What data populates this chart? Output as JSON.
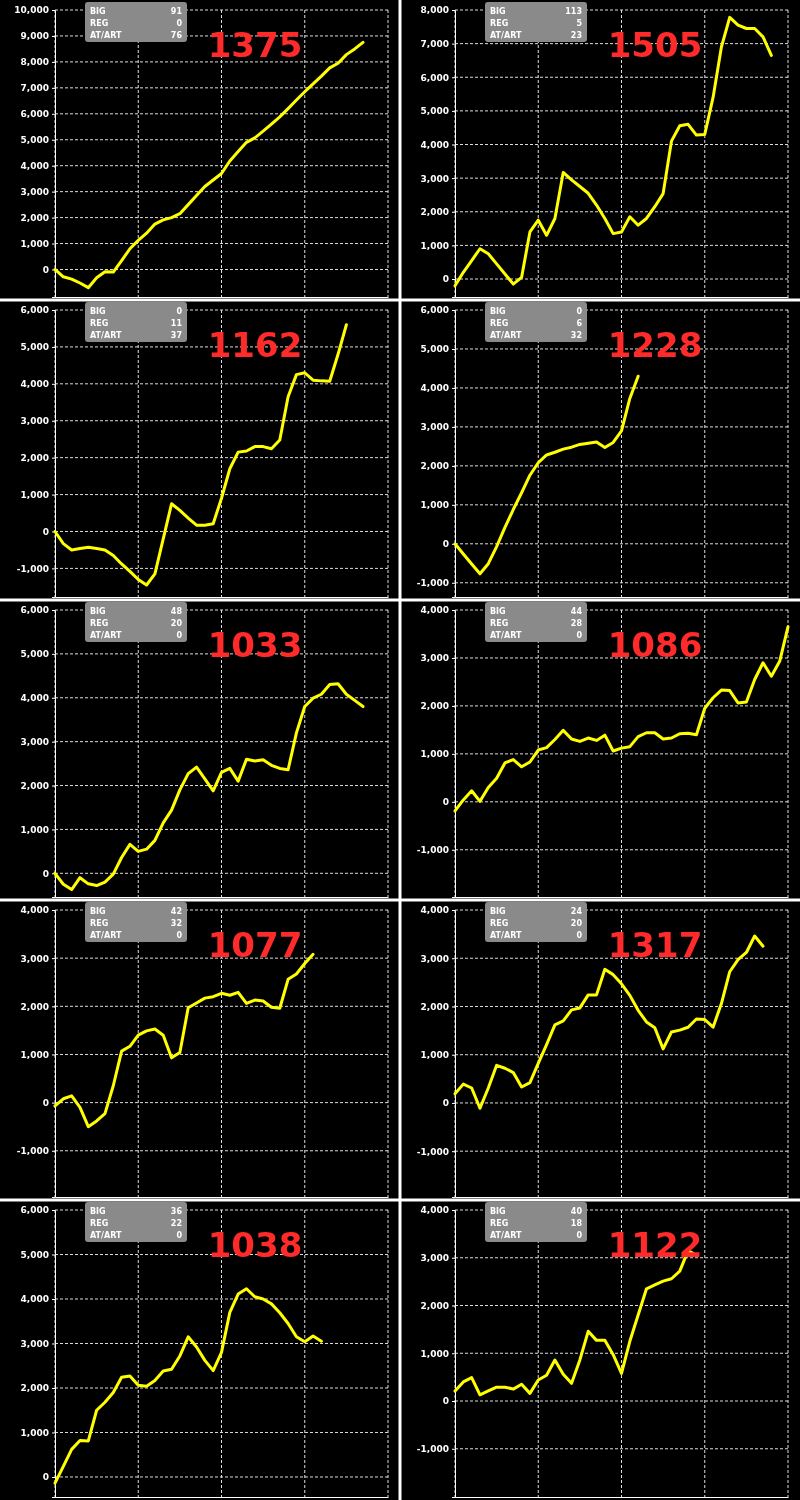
{
  "chart_data": [
    {
      "type": "line",
      "title": "1375",
      "annotations": [
        "BIG",
        "91",
        "REG",
        "0",
        "AT/ART",
        "76"
      ],
      "color": "#ffff00",
      "grid": true,
      "ylim": [
        -1060,
        10000
      ],
      "yticks": [
        {
          "value": 0,
          "label": "0"
        },
        {
          "value": 1000,
          "label": "1,000"
        },
        {
          "value": 2000,
          "label": "2,000"
        },
        {
          "value": 3000,
          "label": "3,000"
        },
        {
          "value": 4000,
          "label": "4,000"
        },
        {
          "value": 5000,
          "label": "5,000"
        },
        {
          "value": 6000,
          "label": "6,000"
        },
        {
          "value": 7000,
          "label": "7,000"
        },
        {
          "value": 8000,
          "label": "8,000"
        },
        {
          "value": 9000,
          "label": "9,000"
        },
        {
          "value": 10000,
          "label": "10,000"
        }
      ],
      "categories": [
        null,
        null,
        null,
        null,
        null,
        null,
        null,
        null,
        null,
        null,
        null,
        null,
        null,
        null,
        null,
        null,
        null,
        null,
        null,
        null,
        null,
        null,
        null,
        null,
        null,
        null,
        null,
        null,
        null,
        null,
        null,
        null,
        null,
        null,
        null,
        null,
        null,
        null,
        null,
        null,
        null
      ],
      "values": [
        0,
        -280,
        -370,
        -520,
        -700,
        -320,
        -90,
        -100,
        340,
        800,
        1120,
        1400,
        1750,
        1910,
        2000,
        2150,
        2500,
        2850,
        3200,
        3450,
        3700,
        4180,
        4550,
        4900,
        5070,
        5330,
        5600,
        5880,
        6200,
        6530,
        6850,
        7150,
        7450,
        7770,
        7950,
        8280,
        8500,
        8750,
        null,
        null,
        null
      ]
    },
    {
      "type": "line",
      "title": "1505",
      "annotations": [
        "BIG",
        "113",
        "REG",
        "5",
        "AT/ART",
        "23"
      ],
      "color": "#ffff00",
      "grid": true,
      "ylim": [
        -535,
        8000
      ],
      "yticks": [
        {
          "value": 0,
          "label": "0"
        },
        {
          "value": 1000,
          "label": "1,000"
        },
        {
          "value": 2000,
          "label": "2,000"
        },
        {
          "value": 3000,
          "label": "3,000"
        },
        {
          "value": 4000,
          "label": "4,000"
        },
        {
          "value": 5000,
          "label": "5,000"
        },
        {
          "value": 6000,
          "label": "6,000"
        },
        {
          "value": 7000,
          "label": "7,000"
        },
        {
          "value": 8000,
          "label": "8,000"
        }
      ],
      "categories": [
        null,
        null,
        null,
        null,
        null,
        null,
        null,
        null,
        null,
        null,
        null,
        null,
        null,
        null,
        null,
        null,
        null,
        null,
        null,
        null,
        null,
        null,
        null,
        null,
        null,
        null,
        null,
        null,
        null,
        null,
        null,
        null,
        null,
        null,
        null,
        null,
        null,
        null,
        null,
        null,
        null
      ],
      "values": [
        -200,
        200,
        550,
        900,
        750,
        450,
        150,
        -150,
        50,
        1400,
        1750,
        1300,
        1800,
        3170,
        2950,
        2750,
        2550,
        2200,
        1800,
        1350,
        1400,
        1850,
        1600,
        1800,
        2150,
        2540,
        4100,
        4560,
        4600,
        4280,
        4300,
        5400,
        6900,
        7780,
        7550,
        7450,
        7450,
        7200,
        6650,
        null,
        null
      ]
    },
    {
      "type": "line",
      "title": "1162",
      "annotations": [
        "BIG",
        "0",
        "REG",
        "11",
        "AT/ART",
        "37"
      ],
      "color": "#ffff00",
      "grid": true,
      "ylim": [
        -1775,
        6000
      ],
      "yticks": [
        {
          "value": -1000,
          "label": "-1,000"
        },
        {
          "value": 0,
          "label": "0"
        },
        {
          "value": 1000,
          "label": "1,000"
        },
        {
          "value": 2000,
          "label": "2,000"
        },
        {
          "value": 3000,
          "label": "3,000"
        },
        {
          "value": 4000,
          "label": "4,000"
        },
        {
          "value": 5000,
          "label": "5,000"
        },
        {
          "value": 6000,
          "label": "6,000"
        }
      ],
      "categories": [
        null,
        null,
        null,
        null,
        null,
        null,
        null,
        null,
        null,
        null,
        null,
        null,
        null,
        null,
        null,
        null,
        null,
        null,
        null,
        null,
        null,
        null,
        null,
        null,
        null,
        null,
        null,
        null,
        null,
        null,
        null,
        null,
        null,
        null,
        null,
        null,
        null,
        null,
        null,
        null,
        null
      ],
      "values": [
        0,
        -330,
        -500,
        -460,
        -430,
        -460,
        -500,
        -650,
        -880,
        -1080,
        -1300,
        -1450,
        -1150,
        -200,
        750,
        570,
        360,
        170,
        170,
        210,
        900,
        1700,
        2150,
        2180,
        2300,
        2300,
        2240,
        2480,
        3650,
        4250,
        4300,
        4100,
        4080,
        4070,
        4800,
        5600,
        null,
        null,
        null,
        null,
        null
      ]
    },
    {
      "type": "line",
      "title": "1228",
      "annotations": [
        "BIG",
        "0",
        "REG",
        "6",
        "AT/ART",
        "32"
      ],
      "color": "#ffff00",
      "grid": true,
      "ylim": [
        -1365,
        6000
      ],
      "yticks": [
        {
          "value": -1000,
          "label": "-1,000"
        },
        {
          "value": 0,
          "label": "0"
        },
        {
          "value": 1000,
          "label": "1,000"
        },
        {
          "value": 2000,
          "label": "2,000"
        },
        {
          "value": 3000,
          "label": "3,000"
        },
        {
          "value": 4000,
          "label": "4,000"
        },
        {
          "value": 5000,
          "label": "5,000"
        },
        {
          "value": 6000,
          "label": "6,000"
        }
      ],
      "categories": [
        null,
        null,
        null,
        null,
        null,
        null,
        null,
        null,
        null,
        null,
        null,
        null,
        null,
        null,
        null,
        null,
        null,
        null,
        null,
        null,
        null,
        null,
        null,
        null,
        null,
        null,
        null,
        null,
        null,
        null,
        null,
        null,
        null,
        null,
        null,
        null,
        null,
        null,
        null,
        null,
        null
      ],
      "values": [
        0,
        -260,
        -520,
        -770,
        -510,
        -70,
        420,
        880,
        1310,
        1760,
        2080,
        2280,
        2350,
        2430,
        2480,
        2550,
        2580,
        2610,
        2470,
        2600,
        2900,
        3730,
        4300,
        null,
        null,
        null,
        null,
        null,
        null,
        null,
        null,
        null,
        null,
        null,
        null,
        null,
        null,
        null,
        null,
        null,
        null
      ]
    },
    {
      "type": "line",
      "title": "1033",
      "annotations": [
        "BIG",
        "48",
        "REG",
        "20",
        "AT/ART",
        "0"
      ],
      "color": "#ffff00",
      "grid": true,
      "ylim": [
        -540,
        6000
      ],
      "yticks": [
        {
          "value": 0,
          "label": "0"
        },
        {
          "value": 1000,
          "label": "1,000"
        },
        {
          "value": 2000,
          "label": "2,000"
        },
        {
          "value": 3000,
          "label": "3,000"
        },
        {
          "value": 4000,
          "label": "4,000"
        },
        {
          "value": 5000,
          "label": "5,000"
        },
        {
          "value": 6000,
          "label": "6,000"
        }
      ],
      "categories": [
        null,
        null,
        null,
        null,
        null,
        null,
        null,
        null,
        null,
        null,
        null,
        null,
        null,
        null,
        null,
        null,
        null,
        null,
        null,
        null,
        null,
        null,
        null,
        null,
        null,
        null,
        null,
        null,
        null,
        null,
        null,
        null,
        null,
        null,
        null,
        null,
        null,
        null,
        null,
        null,
        null
      ],
      "values": [
        0,
        -250,
        -370,
        -100,
        -240,
        -280,
        -200,
        -20,
        360,
        660,
        500,
        550,
        750,
        1150,
        1440,
        1900,
        2270,
        2420,
        2150,
        1880,
        2300,
        2390,
        2100,
        2600,
        2560,
        2590,
        2460,
        2390,
        2360,
        3200,
        3800,
        3990,
        4080,
        4300,
        4320,
        4080,
        3940,
        3800,
        null,
        null,
        null
      ]
    },
    {
      "type": "line",
      "title": "1086",
      "annotations": [
        "BIG",
        "44",
        "REG",
        "28",
        "AT/ART",
        "0"
      ],
      "color": "#ffff00",
      "grid": true,
      "ylim": [
        -1985,
        4000
      ],
      "yticks": [
        {
          "value": -1000,
          "label": "-1,000"
        },
        {
          "value": 0,
          "label": "0"
        },
        {
          "value": 1000,
          "label": "1,000"
        },
        {
          "value": 2000,
          "label": "2,000"
        },
        {
          "value": 3000,
          "label": "3,000"
        },
        {
          "value": 4000,
          "label": "4,000"
        }
      ],
      "categories": [
        null,
        null,
        null,
        null,
        null,
        null,
        null,
        null,
        null,
        null,
        null,
        null,
        null,
        null,
        null,
        null,
        null,
        null,
        null,
        null,
        null,
        null,
        null,
        null,
        null,
        null,
        null,
        null,
        null,
        null,
        null,
        null,
        null,
        null,
        null,
        null,
        null,
        null,
        null,
        null,
        null
      ],
      "values": [
        -190,
        40,
        230,
        10,
        300,
        490,
        810,
        880,
        730,
        830,
        1080,
        1130,
        1300,
        1490,
        1310,
        1260,
        1330,
        1280,
        1390,
        1060,
        1120,
        1150,
        1360,
        1440,
        1440,
        1310,
        1330,
        1420,
        1430,
        1400,
        1950,
        2170,
        2330,
        2320,
        2060,
        2080,
        2550,
        2900,
        2620,
        2930,
        3650
      ]
    },
    {
      "type": "line",
      "title": "1077",
      "annotations": [
        "BIG",
        "42",
        "REG",
        "32",
        "AT/ART",
        "0"
      ],
      "color": "#ffff00",
      "grid": true,
      "ylim": [
        -1960,
        4000
      ],
      "yticks": [
        {
          "value": -1000,
          "label": "-1,000"
        },
        {
          "value": 0,
          "label": "0"
        },
        {
          "value": 1000,
          "label": "1,000"
        },
        {
          "value": 2000,
          "label": "2,000"
        },
        {
          "value": 3000,
          "label": "3,000"
        },
        {
          "value": 4000,
          "label": "4,000"
        }
      ],
      "categories": [
        null,
        null,
        null,
        null,
        null,
        null,
        null,
        null,
        null,
        null,
        null,
        null,
        null,
        null,
        null,
        null,
        null,
        null,
        null,
        null,
        null,
        null,
        null,
        null,
        null,
        null,
        null,
        null,
        null,
        null,
        null,
        null,
        null,
        null,
        null,
        null,
        null,
        null,
        null,
        null,
        null
      ],
      "values": [
        -70,
        80,
        140,
        -100,
        -500,
        -380,
        -230,
        350,
        1070,
        1170,
        1400,
        1490,
        1530,
        1400,
        930,
        1040,
        1970,
        2070,
        2170,
        2200,
        2270,
        2230,
        2290,
        2060,
        2130,
        2110,
        1980,
        1960,
        2560,
        2670,
        2890,
        3080,
        null,
        null,
        null,
        null,
        null,
        null,
        null,
        null,
        null
      ]
    },
    {
      "type": "line",
      "title": "1317",
      "annotations": [
        "BIG",
        "24",
        "REG",
        "20",
        "AT/ART",
        "0"
      ],
      "color": "#ffff00",
      "grid": true,
      "ylim": [
        -1950,
        4000
      ],
      "yticks": [
        {
          "value": -1000,
          "label": "-1,000"
        },
        {
          "value": 0,
          "label": "0"
        },
        {
          "value": 1000,
          "label": "1,000"
        },
        {
          "value": 2000,
          "label": "2,000"
        },
        {
          "value": 3000,
          "label": "3,000"
        },
        {
          "value": 4000,
          "label": "4,000"
        }
      ],
      "categories": [
        null,
        null,
        null,
        null,
        null,
        null,
        null,
        null,
        null,
        null,
        null,
        null,
        null,
        null,
        null,
        null,
        null,
        null,
        null,
        null,
        null,
        null,
        null,
        null,
        null,
        null,
        null,
        null,
        null,
        null,
        null,
        null,
        null,
        null,
        null,
        null,
        null,
        null,
        null,
        null,
        null
      ],
      "values": [
        190,
        390,
        310,
        -110,
        310,
        780,
        720,
        630,
        330,
        420,
        820,
        1210,
        1620,
        1700,
        1930,
        1970,
        2240,
        2240,
        2770,
        2660,
        2470,
        2230,
        1920,
        1680,
        1560,
        1120,
        1470,
        1510,
        1570,
        1740,
        1730,
        1570,
        2060,
        2720,
        2970,
        3120,
        3460,
        3250,
        null,
        null,
        null
      ]
    },
    {
      "type": "line",
      "title": "1038",
      "annotations": [
        "BIG",
        "36",
        "REG",
        "22",
        "AT/ART",
        "0"
      ],
      "color": "#ffff00",
      "grid": true,
      "ylim": [
        -450,
        6000
      ],
      "yticks": [
        {
          "value": 0,
          "label": "0"
        },
        {
          "value": 1000,
          "label": "1,000"
        },
        {
          "value": 2000,
          "label": "2,000"
        },
        {
          "value": 3000,
          "label": "3,000"
        },
        {
          "value": 4000,
          "label": "4,000"
        },
        {
          "value": 5000,
          "label": "5,000"
        },
        {
          "value": 6000,
          "label": "6,000"
        }
      ],
      "categories": [
        null,
        null,
        null,
        null,
        null,
        null,
        null,
        null,
        null,
        null,
        null,
        null,
        null,
        null,
        null,
        null,
        null,
        null,
        null,
        null,
        null,
        null,
        null,
        null,
        null,
        null,
        null,
        null,
        null,
        null,
        null,
        null,
        null,
        null,
        null,
        null,
        null,
        null,
        null,
        null,
        null
      ],
      "values": [
        -140,
        240,
        620,
        820,
        810,
        1500,
        1680,
        1900,
        2240,
        2270,
        2060,
        2040,
        2170,
        2380,
        2420,
        2720,
        3150,
        2920,
        2620,
        2390,
        2800,
        3700,
        4110,
        4230,
        4050,
        4000,
        3890,
        3690,
        3450,
        3150,
        3040,
        3170,
        3050,
        null,
        null,
        null,
        null,
        null,
        null,
        null,
        null
      ]
    },
    {
      "type": "line",
      "title": "1122",
      "annotations": [
        "BIG",
        "40",
        "REG",
        "18",
        "AT/ART",
        "0"
      ],
      "color": "#ffff00",
      "grid": true,
      "ylim": [
        -2010,
        4000
      ],
      "yticks": [
        {
          "value": -1000,
          "label": "-1,000"
        },
        {
          "value": 0,
          "label": "0"
        },
        {
          "value": 1000,
          "label": "1,000"
        },
        {
          "value": 2000,
          "label": "2,000"
        },
        {
          "value": 3000,
          "label": "3,000"
        },
        {
          "value": 4000,
          "label": "4,000"
        }
      ],
      "categories": [
        null,
        null,
        null,
        null,
        null,
        null,
        null,
        null,
        null,
        null,
        null,
        null,
        null,
        null,
        null,
        null,
        null,
        null,
        null,
        null,
        null,
        null,
        null,
        null,
        null,
        null,
        null,
        null,
        null,
        null,
        null,
        null,
        null,
        null,
        null,
        null,
        null,
        null,
        null,
        null,
        null
      ],
      "values": [
        210,
        400,
        490,
        130,
        210,
        290,
        290,
        250,
        350,
        160,
        440,
        540,
        860,
        560,
        370,
        860,
        1460,
        1270,
        1270,
        970,
        580,
        1250,
        1800,
        2350,
        2430,
        2510,
        2560,
        2720,
        3150,
        3050,
        null,
        null,
        null,
        null,
        null,
        null,
        null,
        null,
        null,
        null,
        null
      ]
    }
  ]
}
